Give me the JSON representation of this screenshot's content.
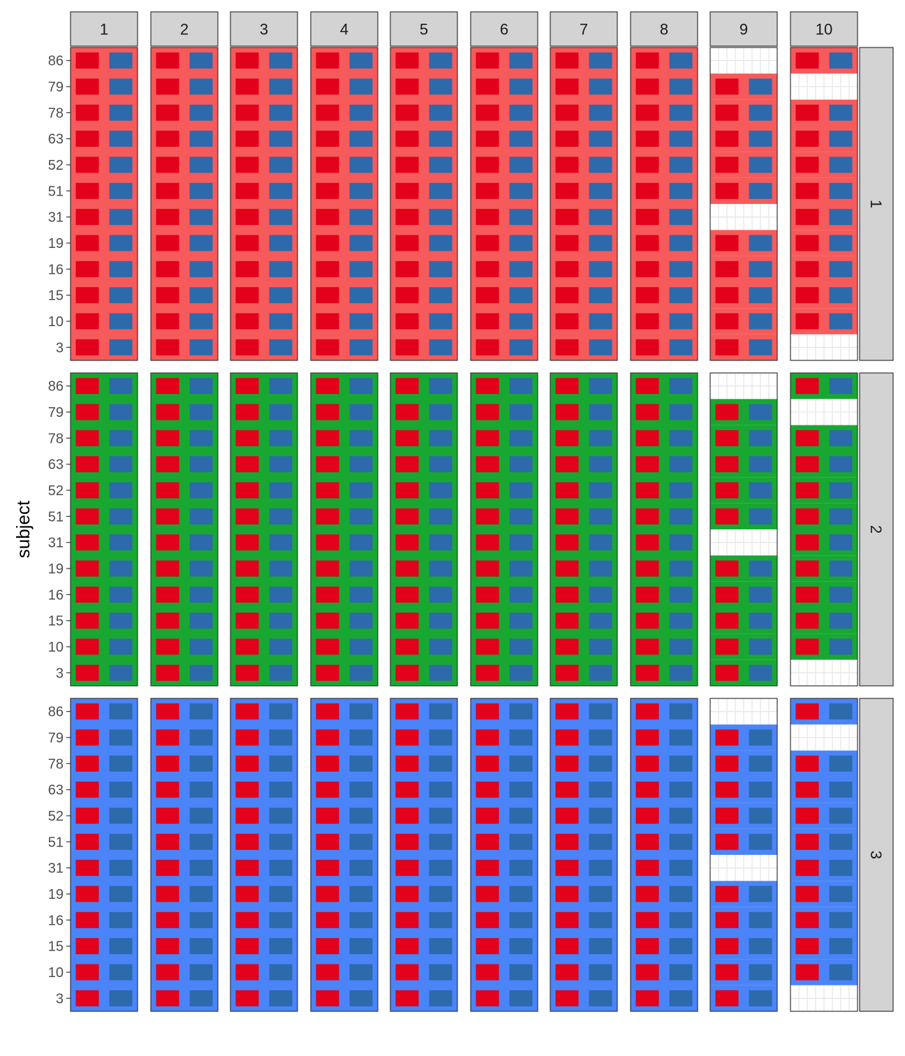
{
  "chart_data": {
    "type": "heatmap",
    "title": "",
    "xlabel": "",
    "ylabel": "subject",
    "column_facets": [
      "1",
      "2",
      "3",
      "4",
      "5",
      "6",
      "7",
      "8",
      "9",
      "10"
    ],
    "row_facets": [
      "1",
      "2",
      "3"
    ],
    "y_ticks": [
      "86",
      "79",
      "78",
      "63",
      "52",
      "51",
      "31",
      "19",
      "16",
      "15",
      "10",
      "3"
    ],
    "tile_colors": [
      "#E2001A",
      "#2C6AAB"
    ],
    "facet_background_colors": [
      "#F75A5A",
      "#18A832",
      "#4B84F8"
    ],
    "missing": [
      {
        "column": "9",
        "subjects": [
          "86",
          "31"
        ]
      },
      {
        "column": "10",
        "subjects": [
          "79",
          "3"
        ]
      }
    ],
    "grid": "only in empty cells",
    "legend": "none"
  },
  "colors": {
    "strip_fill": "#D3D3D3",
    "panel_border": "#333333",
    "missing_fill": "#FFFFFF",
    "missing_grid": "#E6E6E6"
  }
}
